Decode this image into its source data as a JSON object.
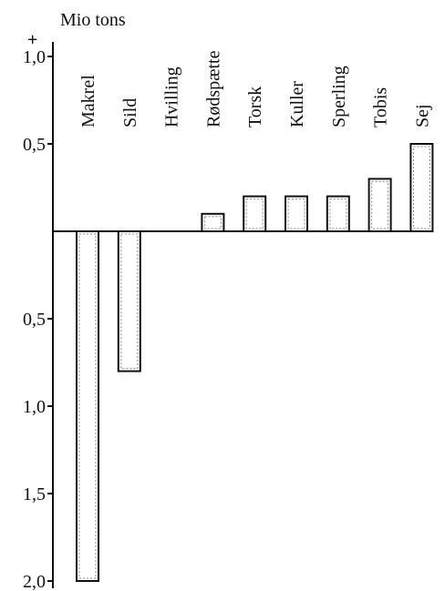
{
  "chart_data": {
    "type": "bar",
    "unit_label": "Mio tons",
    "plus_sign": "+",
    "categories": [
      "Makrel",
      "Sild",
      "Hvilling",
      "Rødspætte",
      "Torsk",
      "Kuller",
      "Sperling",
      "Tobis",
      "Sej"
    ],
    "values": [
      -2.0,
      -0.8,
      0.0,
      0.1,
      0.2,
      0.2,
      0.2,
      0.3,
      0.5
    ],
    "yticks": [
      {
        "value": 1.0,
        "label": "1,0"
      },
      {
        "value": 0.5,
        "label": "0,5"
      },
      {
        "value": -0.5,
        "label": "0,5"
      },
      {
        "value": -1.0,
        "label": "1,0"
      },
      {
        "value": -1.5,
        "label": "1,5"
      },
      {
        "value": -2.0,
        "label": "2,0"
      }
    ],
    "ylim": [
      -2.0,
      1.0
    ],
    "grid": false,
    "legend": false
  }
}
